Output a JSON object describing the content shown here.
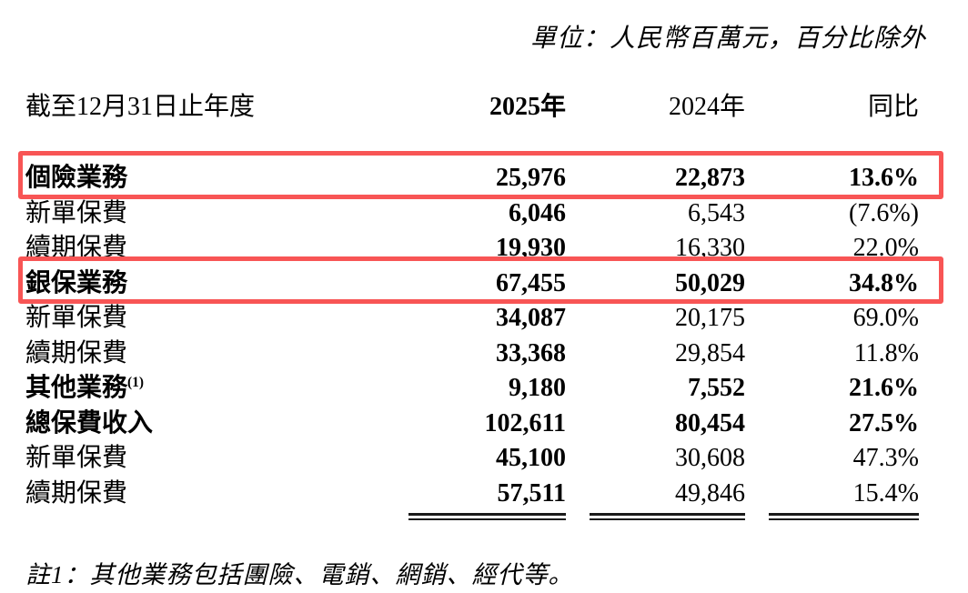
{
  "unit_note": "單位：人民幣百萬元，百分比除外",
  "table": {
    "header": {
      "label": "截至12月31日止年度",
      "col_2025": "2025年",
      "col_2024": "2024年",
      "col_yoy": "同比"
    },
    "rows": [
      {
        "label": "個險業務",
        "sup": "",
        "v2025": "25,976",
        "v2024": "22,873",
        "yoy": "13.6%",
        "emphasis": true,
        "highlighted": true
      },
      {
        "label": "新單保費",
        "sup": "",
        "v2025": "6,046",
        "v2024": "6,543",
        "yoy": "(7.6%)",
        "emphasis": false,
        "highlighted": false
      },
      {
        "label": "續期保費",
        "sup": "",
        "v2025": "19,930",
        "v2024": "16,330",
        "yoy": "22.0%",
        "emphasis": false,
        "highlighted": false
      },
      {
        "label": "銀保業務",
        "sup": "",
        "v2025": "67,455",
        "v2024": "50,029",
        "yoy": "34.8%",
        "emphasis": true,
        "highlighted": true
      },
      {
        "label": "新單保費",
        "sup": "",
        "v2025": "34,087",
        "v2024": "20,175",
        "yoy": "69.0%",
        "emphasis": false,
        "highlighted": false
      },
      {
        "label": "續期保費",
        "sup": "",
        "v2025": "33,368",
        "v2024": "29,854",
        "yoy": "11.8%",
        "emphasis": false,
        "highlighted": false
      },
      {
        "label": "其他業務",
        "sup": "(1)",
        "v2025": "9,180",
        "v2024": "7,552",
        "yoy": "21.6%",
        "emphasis": true,
        "highlighted": false
      },
      {
        "label": "總保費收入",
        "sup": "",
        "v2025": "102,611",
        "v2024": "80,454",
        "yoy": "27.5%",
        "emphasis": true,
        "highlighted": false
      },
      {
        "label": "新單保費",
        "sup": "",
        "v2025": "45,100",
        "v2024": "30,608",
        "yoy": "47.3%",
        "emphasis": false,
        "highlighted": false
      },
      {
        "label": "續期保費",
        "sup": "",
        "v2025": "57,511",
        "v2024": "49,846",
        "yoy": "15.4%",
        "emphasis": false,
        "highlighted": false
      }
    ]
  },
  "footnote": "註1：其他業務包括團險、電銷、網銷、經代等。",
  "colors": {
    "highlight_red": "#f85555",
    "text": "#000000"
  }
}
